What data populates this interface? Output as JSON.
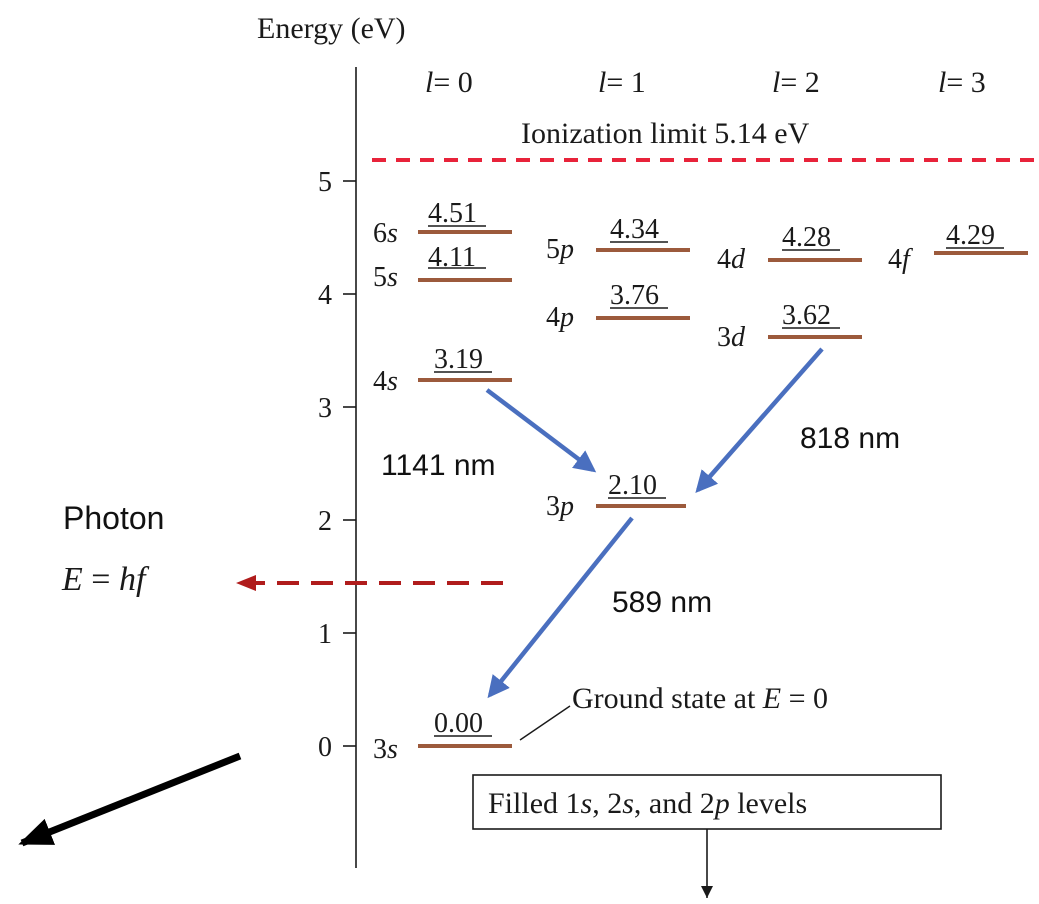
{
  "y_axis": {
    "title": "Energy (eV)",
    "ticks": [
      "0",
      "1",
      "2",
      "3",
      "4",
      "5"
    ]
  },
  "columns": [
    {
      "l": "l",
      "eq": "= 0"
    },
    {
      "l": "l",
      "eq": "= 1"
    },
    {
      "l": "l",
      "eq": "= 2"
    },
    {
      "l": "l",
      "eq": "= 3"
    }
  ],
  "ionization": {
    "label": "Ionization limit 5.14 eV",
    "energy_ev": 5.14,
    "color": "#e8233a"
  },
  "levels": [
    {
      "name_n": "6",
      "name_l": "s",
      "value": "4.51"
    },
    {
      "name_n": "5",
      "name_l": "s",
      "value": "4.11"
    },
    {
      "name_n": "4",
      "name_l": "s",
      "value": "3.19"
    },
    {
      "name_n": "3",
      "name_l": "s",
      "value": "0.00"
    },
    {
      "name_n": "5",
      "name_l": "p",
      "value": "4.34"
    },
    {
      "name_n": "4",
      "name_l": "p",
      "value": "3.76"
    },
    {
      "name_n": "3",
      "name_l": "p",
      "value": "2.10"
    },
    {
      "name_n": "4",
      "name_l": "d",
      "value": "4.28"
    },
    {
      "name_n": "3",
      "name_l": "d",
      "value": "3.62"
    },
    {
      "name_n": "4",
      "name_l": "f",
      "value": "4.29"
    }
  ],
  "level_color": "#9c5a3c",
  "transitions": [
    {
      "label": "1141 nm",
      "from": "4s",
      "to": "3p"
    },
    {
      "label": "818 nm",
      "from": "3d",
      "to": "3p"
    },
    {
      "label": "589 nm",
      "from": "3p",
      "to": "3s"
    }
  ],
  "transition_color": "#4a6fbf",
  "ground_note": {
    "text": "Ground state at ",
    "var": "E",
    "eq": " = 0"
  },
  "filled_box": {
    "pre": "Filled 1",
    "s1": "s",
    "mid": ", 2",
    "s2": "s",
    "post": ", and 2",
    "p": "p",
    "end": " levels"
  },
  "photon": {
    "label": "Photon",
    "formula_E": "E",
    "formula_eq": " = ",
    "formula_hf": "hf",
    "arrow_color": "#b01c1c"
  }
}
